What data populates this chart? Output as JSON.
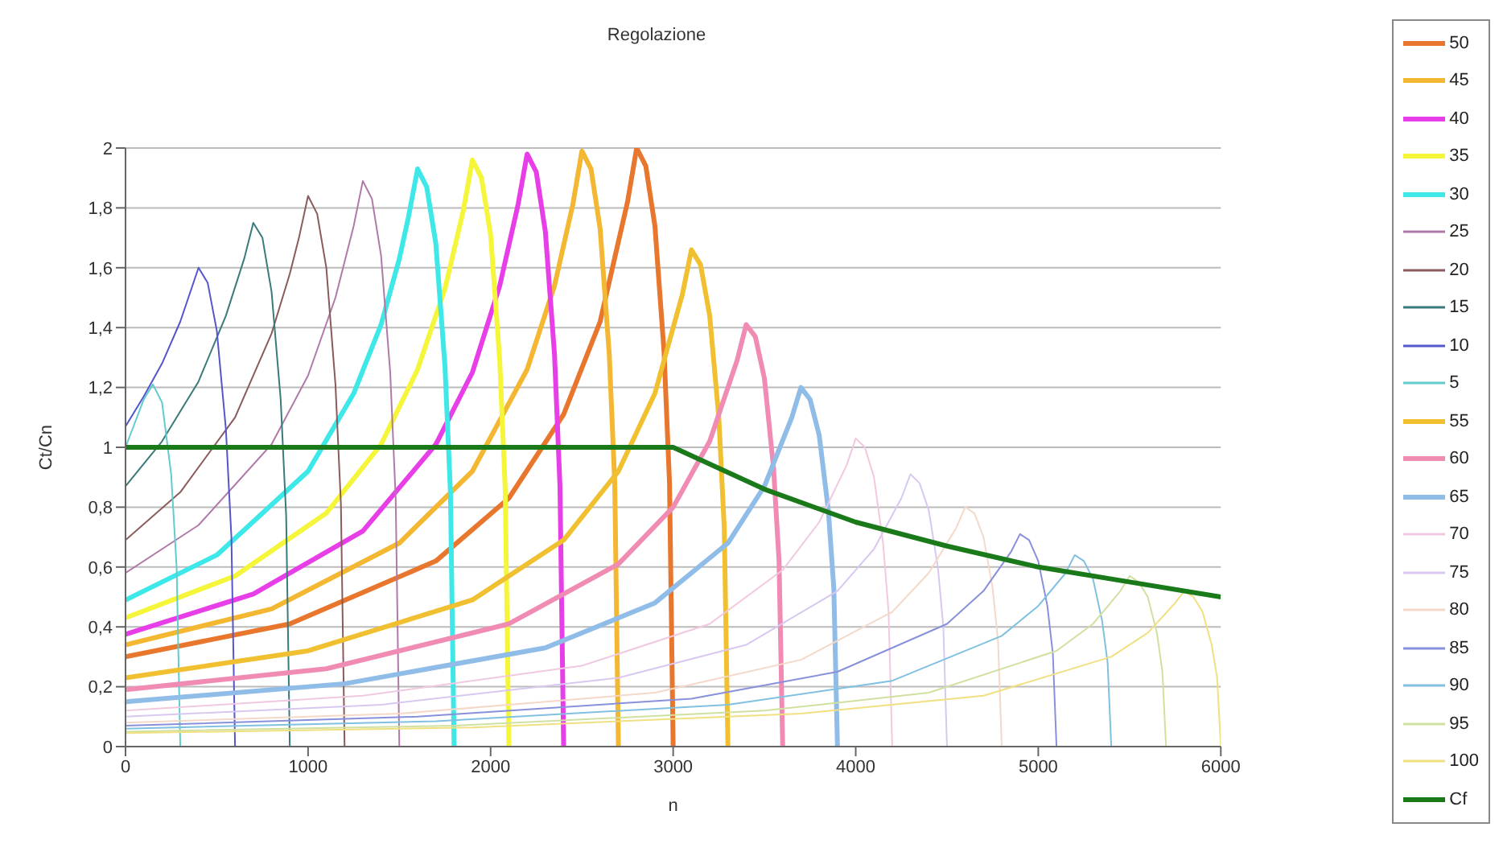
{
  "chart_data": {
    "type": "line",
    "title": "Regolazione",
    "xlabel": "n",
    "ylabel": "Ct/Cn",
    "xlim": [
      0,
      6000
    ],
    "xticks": [
      0,
      1000,
      2000,
      3000,
      4000,
      5000,
      6000
    ],
    "ylim": [
      0,
      2
    ],
    "yticks": [
      0,
      {
        "value": 0.2,
        "label": "0,2"
      },
      {
        "value": 0.4,
        "label": "0,4"
      },
      {
        "value": 0.6,
        "label": "0,6"
      },
      {
        "value": 0.8,
        "label": "0,8"
      },
      1,
      {
        "value": 1.2,
        "label": "1,2"
      },
      {
        "value": 1.4,
        "label": "1,4"
      },
      {
        "value": 1.6,
        "label": "1,6"
      },
      {
        "value": 1.8,
        "label": "1,8"
      },
      2
    ],
    "grid": "y",
    "legend": "right",
    "marker": "none",
    "line_style": "solid",
    "series": [
      {
        "name": "50",
        "color": "#e8762c",
        "x": [
          0,
          900,
          1700,
          2100,
          2400,
          2600,
          2750,
          2800,
          2850,
          2900,
          2950,
          2980,
          3000
        ],
        "values": [
          0.3,
          0.41,
          0.62,
          0.83,
          1.11,
          1.42,
          1.82,
          2.0,
          1.94,
          1.74,
          1.32,
          0.88,
          0
        ]
      },
      {
        "name": "45",
        "color": "#f4b731",
        "x": [
          0,
          800,
          1500,
          1900,
          2200,
          2350,
          2450,
          2500,
          2550,
          2600,
          2650,
          2680,
          2700
        ],
        "values": [
          0.34,
          0.46,
          0.68,
          0.92,
          1.26,
          1.54,
          1.81,
          1.99,
          1.93,
          1.73,
          1.31,
          0.88,
          0
        ]
      },
      {
        "name": "40",
        "color": "#e83ee8",
        "x": [
          0,
          700,
          1300,
          1700,
          1900,
          2050,
          2150,
          2200,
          2250,
          2300,
          2350,
          2380,
          2400
        ],
        "values": [
          0.375,
          0.51,
          0.72,
          1.01,
          1.25,
          1.54,
          1.81,
          1.98,
          1.92,
          1.72,
          1.31,
          0.87,
          0
        ]
      },
      {
        "name": "35",
        "color": "#f5f53a",
        "x": [
          0,
          600,
          1100,
          1400,
          1600,
          1750,
          1850,
          1900,
          1950,
          2000,
          2050,
          2080,
          2100
        ],
        "values": [
          0.43,
          0.57,
          0.78,
          1.01,
          1.26,
          1.53,
          1.79,
          1.96,
          1.9,
          1.71,
          1.29,
          0.86,
          0
        ]
      },
      {
        "name": "30",
        "color": "#3ee8e8",
        "x": [
          0,
          500,
          1000,
          1250,
          1400,
          1500,
          1550,
          1600,
          1650,
          1700,
          1750,
          1780,
          1800
        ],
        "values": [
          0.49,
          0.64,
          0.92,
          1.18,
          1.41,
          1.63,
          1.77,
          1.93,
          1.87,
          1.68,
          1.27,
          0.85,
          0
        ]
      },
      {
        "name": "25",
        "color": "#b07aa8",
        "x": [
          0,
          400,
          800,
          1000,
          1150,
          1250,
          1300,
          1350,
          1400,
          1450,
          1480,
          1500
        ],
        "values": [
          0.58,
          0.74,
          1.01,
          1.24,
          1.5,
          1.74,
          1.89,
          1.83,
          1.64,
          1.25,
          0.83,
          0
        ]
      },
      {
        "name": "20",
        "color": "#8b5a5a",
        "x": [
          0,
          300,
          600,
          800,
          900,
          950,
          1000,
          1050,
          1100,
          1150,
          1180,
          1200
        ],
        "values": [
          0.69,
          0.85,
          1.1,
          1.38,
          1.58,
          1.7,
          1.84,
          1.78,
          1.6,
          1.21,
          0.81,
          0
        ]
      },
      {
        "name": "15",
        "color": "#3a7a7a",
        "x": [
          0,
          200,
          400,
          550,
          650,
          700,
          750,
          800,
          850,
          880,
          900
        ],
        "values": [
          0.87,
          1.02,
          1.22,
          1.44,
          1.63,
          1.75,
          1.7,
          1.52,
          1.16,
          0.77,
          0
        ]
      },
      {
        "name": "10",
        "color": "#5555cc",
        "x": [
          0,
          100,
          200,
          300,
          350,
          400,
          450,
          500,
          550,
          580,
          600
        ],
        "values": [
          1.07,
          1.17,
          1.28,
          1.42,
          1.51,
          1.6,
          1.55,
          1.39,
          1.06,
          0.7,
          0
        ]
      },
      {
        "name": "5",
        "color": "#60cccc",
        "x": [
          0,
          50,
          100,
          150,
          200,
          250,
          280,
          300
        ],
        "values": [
          1.0,
          1.08,
          1.16,
          1.21,
          1.15,
          0.91,
          0.6,
          0
        ]
      },
      {
        "name": "55",
        "color": "#f0c030",
        "x": [
          0,
          1000,
          1900,
          2400,
          2700,
          2900,
          3050,
          3100,
          3150,
          3200,
          3250,
          3280,
          3300
        ],
        "values": [
          0.23,
          0.32,
          0.49,
          0.69,
          0.92,
          1.18,
          1.51,
          1.66,
          1.61,
          1.44,
          1.1,
          0.73,
          0
        ]
      },
      {
        "name": "60",
        "color": "#f08cb4",
        "x": [
          0,
          1100,
          2100,
          2700,
          3000,
          3200,
          3350,
          3400,
          3450,
          3500,
          3550,
          3580,
          3600
        ],
        "values": [
          0.19,
          0.26,
          0.41,
          0.61,
          0.8,
          1.02,
          1.29,
          1.41,
          1.37,
          1.23,
          0.93,
          0.62,
          0
        ]
      },
      {
        "name": "65",
        "color": "#90bce8",
        "x": [
          0,
          1200,
          2300,
          2900,
          3300,
          3500,
          3650,
          3700,
          3750,
          3800,
          3850,
          3880,
          3900
        ],
        "values": [
          0.15,
          0.21,
          0.33,
          0.48,
          0.68,
          0.87,
          1.1,
          1.2,
          1.16,
          1.04,
          0.79,
          0.53,
          0
        ]
      },
      {
        "name": "70",
        "color": "#f0c8e0",
        "x": [
          0,
          1300,
          2500,
          3200,
          3600,
          3800,
          3950,
          4000,
          4050,
          4100,
          4150,
          4180,
          4200
        ],
        "values": [
          0.12,
          0.17,
          0.27,
          0.41,
          0.59,
          0.75,
          0.94,
          1.03,
          1.0,
          0.9,
          0.68,
          0.45,
          0
        ]
      },
      {
        "name": "75",
        "color": "#d8c8f0",
        "x": [
          0,
          1400,
          2700,
          3400,
          3900,
          4100,
          4250,
          4300,
          4350,
          4400,
          4450,
          4480,
          4500
        ],
        "values": [
          0.1,
          0.14,
          0.23,
          0.34,
          0.52,
          0.66,
          0.83,
          0.91,
          0.88,
          0.79,
          0.6,
          0.4,
          0
        ]
      },
      {
        "name": "80",
        "color": "#f4d8c8",
        "x": [
          0,
          1500,
          2900,
          3700,
          4200,
          4400,
          4550,
          4600,
          4650,
          4700,
          4750,
          4780,
          4800
        ],
        "values": [
          0.08,
          0.11,
          0.18,
          0.29,
          0.45,
          0.58,
          0.73,
          0.8,
          0.78,
          0.7,
          0.53,
          0.35,
          0
        ]
      },
      {
        "name": "85",
        "color": "#8890dc",
        "x": [
          0,
          1600,
          3100,
          3900,
          4500,
          4700,
          4850,
          4900,
          4950,
          5000,
          5050,
          5080,
          5100
        ],
        "values": [
          0.07,
          0.1,
          0.16,
          0.25,
          0.41,
          0.52,
          0.65,
          0.71,
          0.69,
          0.62,
          0.47,
          0.31,
          0
        ]
      },
      {
        "name": "90",
        "color": "#80c0e0",
        "x": [
          0,
          1700,
          3300,
          4200,
          4800,
          5000,
          5150,
          5200,
          5250,
          5300,
          5350,
          5380,
          5400
        ],
        "values": [
          0.06,
          0.085,
          0.14,
          0.22,
          0.37,
          0.47,
          0.58,
          0.64,
          0.62,
          0.56,
          0.42,
          0.28,
          0
        ]
      },
      {
        "name": "95",
        "color": "#d0e0a0",
        "x": [
          0,
          1800,
          3500,
          4400,
          5100,
          5300,
          5450,
          5500,
          5550,
          5600,
          5650,
          5680,
          5700
        ],
        "values": [
          0.05,
          0.07,
          0.12,
          0.18,
          0.32,
          0.41,
          0.52,
          0.57,
          0.55,
          0.5,
          0.38,
          0.25,
          0
        ]
      },
      {
        "name": "100",
        "color": "#f0e080",
        "x": [
          0,
          1900,
          3700,
          4700,
          5400,
          5600,
          5750,
          5800,
          5850,
          5900,
          5950,
          5980,
          6000
        ],
        "values": [
          0.045,
          0.064,
          0.11,
          0.17,
          0.3,
          0.38,
          0.48,
          0.52,
          0.5,
          0.45,
          0.34,
          0.23,
          0
        ]
      },
      {
        "name": "Cf",
        "color": "#1a7a1a",
        "x": [
          0,
          3000,
          3500,
          4000,
          4500,
          5000,
          5500,
          6000
        ],
        "values": [
          1,
          1,
          0.86,
          0.75,
          0.67,
          0.6,
          0.55,
          0.5
        ]
      }
    ]
  }
}
